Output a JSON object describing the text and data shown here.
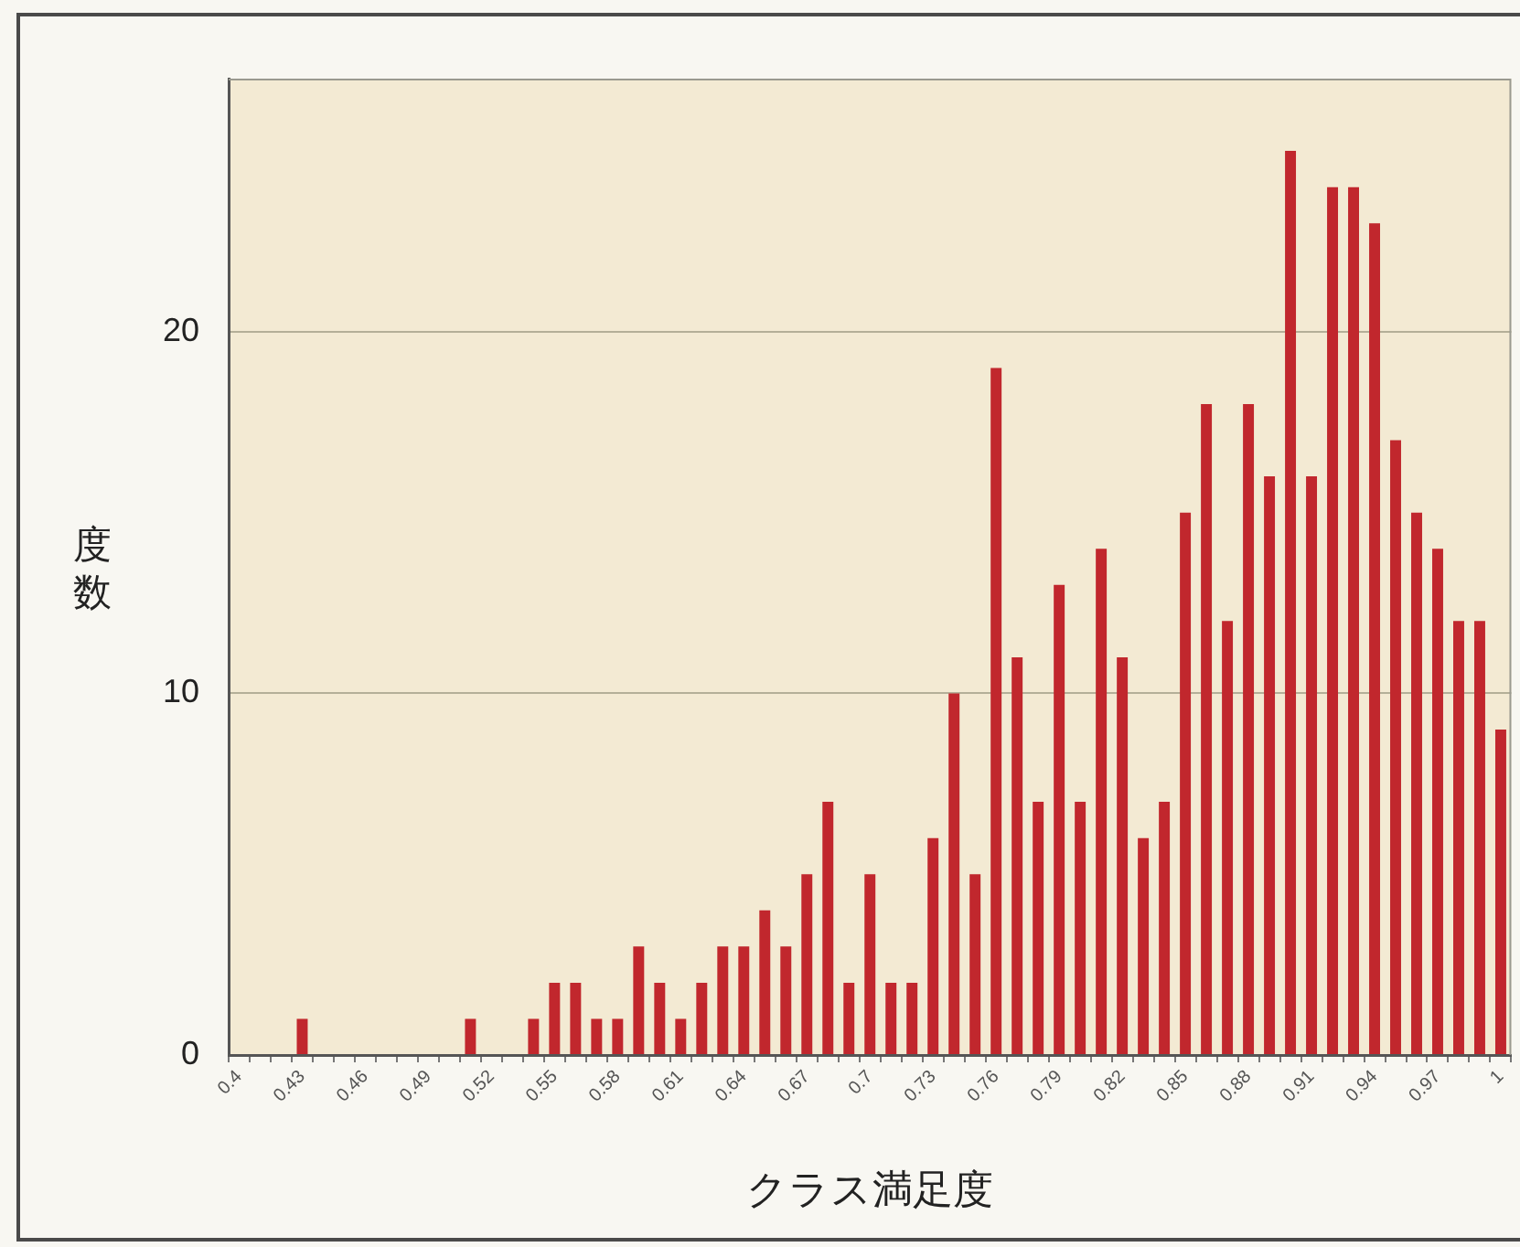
{
  "chart_data": {
    "type": "bar",
    "xlabel": "クラス満足度",
    "ylabel": "度数",
    "categories": [
      "0.4",
      null,
      null,
      "0.43",
      null,
      null,
      "0.46",
      null,
      null,
      "0.49",
      null,
      null,
      "0.52",
      null,
      null,
      "0.55",
      null,
      null,
      "0.58",
      null,
      null,
      "0.61",
      null,
      null,
      "0.64",
      null,
      null,
      "0.67",
      null,
      null,
      "0.7",
      null,
      null,
      "0.73",
      null,
      null,
      "0.76",
      null,
      null,
      "0.79",
      null,
      null,
      "0.82",
      null,
      null,
      "0.85",
      null,
      null,
      "0.88",
      null,
      null,
      "0.91",
      null,
      null,
      "0.94",
      null,
      null,
      "0.97",
      null,
      null,
      "1"
    ],
    "values": [
      0,
      0,
      0,
      1,
      0,
      0,
      0,
      0,
      0,
      0,
      0,
      1,
      0,
      0,
      1,
      2,
      2,
      1,
      1,
      3,
      2,
      1,
      2,
      3,
      3,
      4,
      3,
      5,
      7,
      2,
      5,
      2,
      2,
      6,
      10,
      5,
      19,
      11,
      7,
      13,
      7,
      14,
      11,
      6,
      7,
      15,
      18,
      12,
      18,
      16,
      25,
      16,
      24,
      24,
      23,
      17,
      15,
      14,
      12,
      12,
      9
    ],
    "color": "#c1272d",
    "ylim": [
      0,
      27
    ],
    "yticks": [
      0,
      10,
      20
    ],
    "grid": "y"
  }
}
